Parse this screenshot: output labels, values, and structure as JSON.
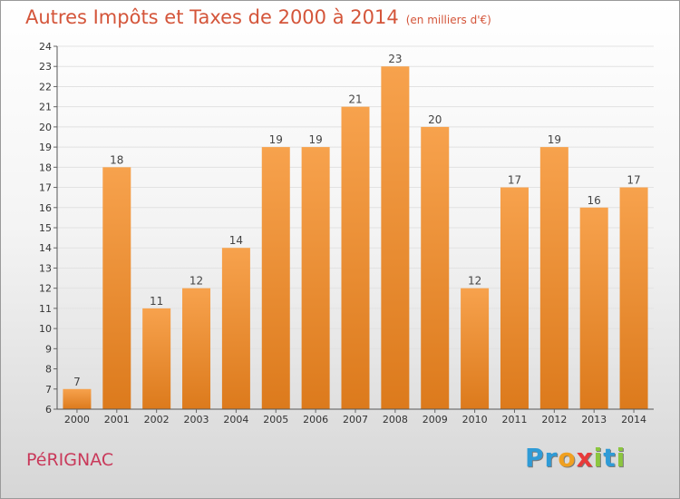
{
  "chart_data": {
    "type": "bar",
    "title": "Autres Impôts et Taxes de 2000 à 2014",
    "subtitle": "(en milliers d'€)",
    "categories": [
      "2000",
      "2001",
      "2002",
      "2003",
      "2004",
      "2005",
      "2006",
      "2007",
      "2008",
      "2009",
      "2010",
      "2011",
      "2012",
      "2013",
      "2014"
    ],
    "values": [
      7,
      18,
      11,
      12,
      14,
      19,
      19,
      21,
      23,
      20,
      12,
      17,
      19,
      16,
      17
    ],
    "ylim": [
      6,
      24
    ],
    "yticks": [
      6,
      7,
      8,
      9,
      10,
      11,
      12,
      13,
      14,
      15,
      16,
      17,
      18,
      19,
      20,
      21,
      22,
      23,
      24
    ],
    "grid": true,
    "bar_color": "#f2963f",
    "bar_color_dark": "#d97518"
  },
  "footer": {
    "commune": "PéRIGNAC",
    "logo_letters": [
      {
        "ch": "P",
        "color": "#2f9bd6"
      },
      {
        "ch": "r",
        "color": "#2f9bd6"
      },
      {
        "ch": "o",
        "color": "#f0a020"
      },
      {
        "ch": "x",
        "color": "#e83a3a"
      },
      {
        "ch": "i",
        "color": "#8cc63f"
      },
      {
        "ch": "t",
        "color": "#2f9bd6"
      },
      {
        "ch": "i",
        "color": "#8cc63f"
      }
    ]
  }
}
